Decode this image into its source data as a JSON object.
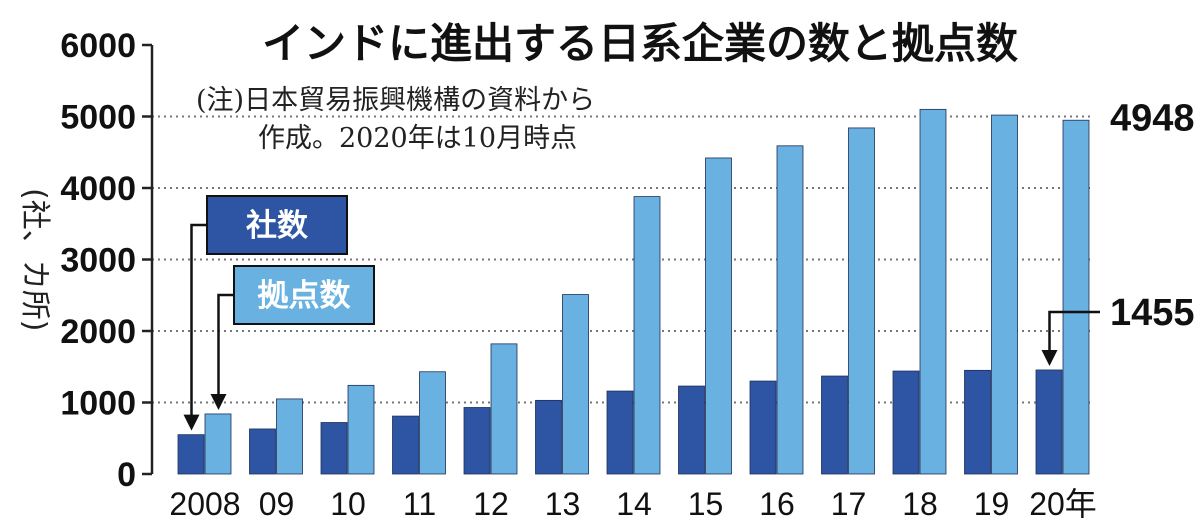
{
  "chart_data": {
    "type": "bar",
    "title": "インドに進出する日系企業の数と拠点数",
    "note_lines": [
      "(注)日本貿易振興機構の資料から",
      "作成。2020年は10月時点"
    ],
    "ylabel": "(社、カ所)",
    "ylim": [
      0,
      6000
    ],
    "yticks": [
      0,
      1000,
      2000,
      3000,
      4000,
      5000,
      6000
    ],
    "ytick_labels": [
      "0",
      "1000",
      "2000",
      "3000",
      "4000",
      "5000",
      "6000"
    ],
    "gridlines": [
      1000,
      2000,
      3000,
      4000,
      5000
    ],
    "categories": [
      "2008",
      "09",
      "10",
      "11",
      "12",
      "13",
      "14",
      "15",
      "16",
      "17",
      "18",
      "19",
      "20年"
    ],
    "series": [
      {
        "name": "社数",
        "color": "#2e55a4",
        "values": [
          550,
          630,
          720,
          810,
          930,
          1030,
          1160,
          1230,
          1300,
          1370,
          1440,
          1450,
          1455
        ]
      },
      {
        "name": "拠点数",
        "color": "#69b1e0",
        "values": [
          840,
          1050,
          1240,
          1430,
          1820,
          2510,
          3880,
          4420,
          4590,
          4840,
          5100,
          5020,
          4948
        ]
      }
    ],
    "annotations": [
      {
        "series": 1,
        "index": 12,
        "label": "4948"
      },
      {
        "series": 0,
        "index": 12,
        "label": "1455"
      }
    ]
  }
}
